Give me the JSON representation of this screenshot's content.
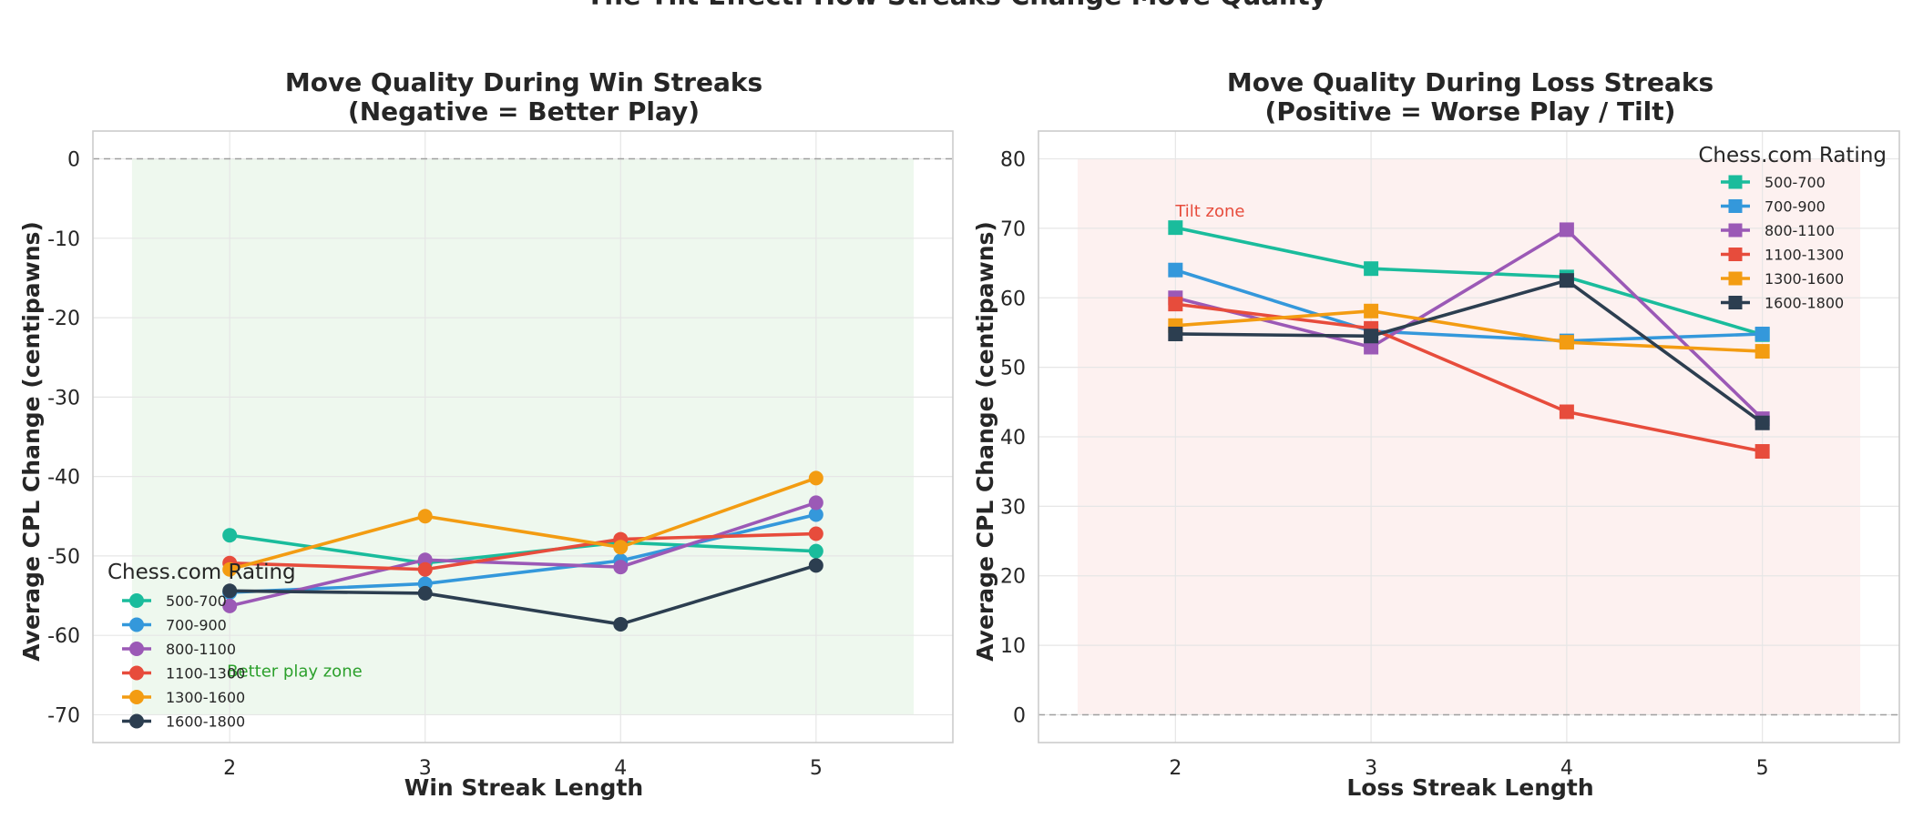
{
  "figure_title": "The Tilt Effect: How Streaks Change Move Quality",
  "chart_data": [
    {
      "type": "line",
      "title_line1": "Move Quality During Win Streaks",
      "title_line2": "(Negative = Better Play)",
      "xlabel": "Win Streak Length",
      "ylabel": "Average CPL Change (centipawns)",
      "x": [
        2,
        3,
        4,
        5
      ],
      "xlim": [
        1.3,
        5.7
      ],
      "ylim": [
        -73.5,
        3.5
      ],
      "yticks": [
        0,
        -10,
        -20,
        -30,
        -40,
        -50,
        -60,
        -70
      ],
      "grid": true,
      "marker": "circle",
      "shaded_zone": {
        "y_range": [
          -70,
          0
        ],
        "x_range": [
          1.5,
          5.5
        ],
        "color": "#2ca02c"
      },
      "reference_line": 0,
      "annotation": {
        "text": "Better play zone",
        "color": "#2ca02c"
      },
      "legend": {
        "title": "Chess.com Rating",
        "placement": "lower-left"
      },
      "series": [
        {
          "name": "500-700",
          "color": "#1abc9c",
          "values": [
            -47.4,
            -50.9,
            -48.3,
            -49.4
          ]
        },
        {
          "name": "700-900",
          "color": "#3498db",
          "values": [
            -54.6,
            -53.5,
            -50.6,
            -44.8
          ]
        },
        {
          "name": "800-1100",
          "color": "#9b59b6",
          "values": [
            -56.3,
            -50.5,
            -51.4,
            -43.3
          ]
        },
        {
          "name": "1100-1300",
          "color": "#e74c3c",
          "values": [
            -50.9,
            -51.7,
            -47.9,
            -47.2
          ]
        },
        {
          "name": "1300-1600",
          "color": "#f39c12",
          "values": [
            -51.7,
            -45.0,
            -48.9,
            -40.2
          ]
        },
        {
          "name": "1600-1800",
          "color": "#2c3e50",
          "values": [
            -54.4,
            -54.7,
            -58.6,
            -51.2
          ]
        }
      ]
    },
    {
      "type": "line",
      "title_line1": "Move Quality During Loss Streaks",
      "title_line2": "(Positive = Worse Play / Tilt)",
      "xlabel": "Loss Streak Length",
      "ylabel": "Average CPL Change (centipawns)",
      "x": [
        2,
        3,
        4,
        5
      ],
      "xlim": [
        1.3,
        5.7
      ],
      "ylim": [
        -4,
        84
      ],
      "yticks": [
        0,
        10,
        20,
        30,
        40,
        50,
        60,
        70,
        80
      ],
      "grid": true,
      "marker": "square",
      "shaded_zone": {
        "y_range": [
          0,
          80
        ],
        "x_range": [
          1.5,
          5.5
        ],
        "color": "#e74c3c"
      },
      "reference_line": 0,
      "annotation": {
        "text": "Tilt zone",
        "color": "#e74c3c"
      },
      "legend": {
        "title": "Chess.com Rating",
        "placement": "upper-right"
      },
      "series": [
        {
          "name": "500-700",
          "color": "#1abc9c",
          "values": [
            70.1,
            64.2,
            63.0,
            54.7
          ]
        },
        {
          "name": "700-900",
          "color": "#3498db",
          "values": [
            64.0,
            55.2,
            53.8,
            54.8
          ]
        },
        {
          "name": "800-1100",
          "color": "#9b59b6",
          "values": [
            60.0,
            52.9,
            69.8,
            42.6
          ]
        },
        {
          "name": "1100-1300",
          "color": "#e74c3c",
          "values": [
            59.1,
            55.6,
            43.6,
            37.9
          ]
        },
        {
          "name": "1300-1600",
          "color": "#f39c12",
          "values": [
            56.0,
            58.1,
            53.6,
            52.3
          ]
        },
        {
          "name": "1600-1800",
          "color": "#2c3e50",
          "values": [
            54.8,
            54.5,
            62.5,
            42.0
          ]
        }
      ]
    }
  ]
}
